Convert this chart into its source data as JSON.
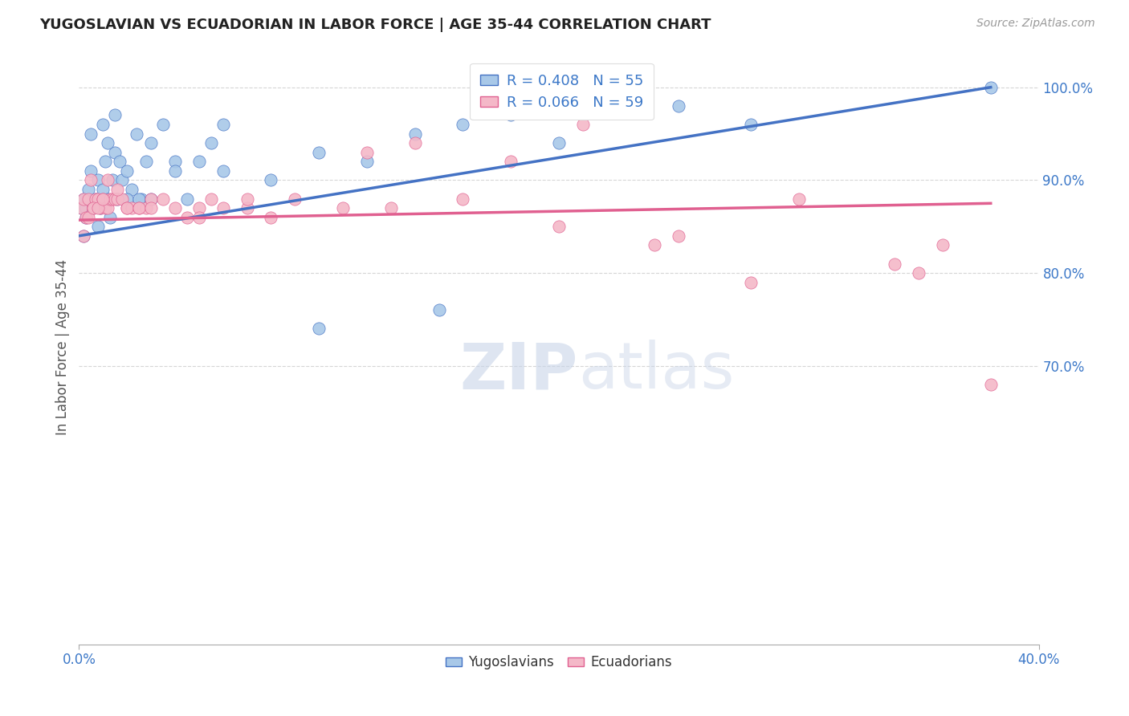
{
  "title": "YUGOSLAVIAN VS ECUADORIAN IN LABOR FORCE | AGE 35-44 CORRELATION CHART",
  "source": "Source: ZipAtlas.com",
  "ylabel": "In Labor Force | Age 35-44",
  "xlim": [
    0.0,
    0.4
  ],
  "ylim": [
    0.4,
    1.04
  ],
  "ytick_labels": [
    "100.0%",
    "90.0%",
    "80.0%",
    "70.0%"
  ],
  "ytick_values": [
    1.0,
    0.9,
    0.8,
    0.7
  ],
  "xtick_labels": [
    "0.0%",
    "40.0%"
  ],
  "xtick_values": [
    0.0,
    0.4
  ],
  "legend_r_blue": "R = 0.408",
  "legend_n_blue": "N = 55",
  "legend_r_pink": "R = 0.066",
  "legend_n_pink": "N = 59",
  "legend_label_blue": "Yugoslavians",
  "legend_label_pink": "Ecuadorians",
  "blue_color": "#a8c8e8",
  "pink_color": "#f4b8c8",
  "blue_line_color": "#4472c4",
  "pink_line_color": "#e06090",
  "accent_color": "#3c78c8",
  "watermark_color": "#c8d4e8",
  "blue_scatter_x": [
    0.001,
    0.002,
    0.003,
    0.004,
    0.005,
    0.006,
    0.007,
    0.008,
    0.009,
    0.01,
    0.011,
    0.012,
    0.013,
    0.014,
    0.015,
    0.016,
    0.017,
    0.018,
    0.02,
    0.022,
    0.024,
    0.026,
    0.028,
    0.03,
    0.035,
    0.04,
    0.045,
    0.05,
    0.055,
    0.06,
    0.002,
    0.003,
    0.005,
    0.008,
    0.01,
    0.012,
    0.015,
    0.02,
    0.025,
    0.03,
    0.04,
    0.06,
    0.08,
    0.1,
    0.12,
    0.14,
    0.16,
    0.18,
    0.2,
    0.25,
    0.1,
    0.15,
    0.22,
    0.28,
    0.38
  ],
  "blue_scatter_y": [
    0.87,
    0.88,
    0.86,
    0.89,
    0.91,
    0.87,
    0.88,
    0.9,
    0.87,
    0.89,
    0.92,
    0.88,
    0.86,
    0.9,
    0.93,
    0.88,
    0.92,
    0.9,
    0.91,
    0.89,
    0.95,
    0.88,
    0.92,
    0.94,
    0.96,
    0.92,
    0.88,
    0.92,
    0.94,
    0.91,
    0.84,
    0.87,
    0.95,
    0.85,
    0.96,
    0.94,
    0.97,
    0.88,
    0.88,
    0.88,
    0.91,
    0.96,
    0.9,
    0.93,
    0.92,
    0.95,
    0.96,
    0.97,
    0.94,
    0.98,
    0.74,
    0.76,
    0.98,
    0.96,
    1.0
  ],
  "pink_scatter_x": [
    0.001,
    0.002,
    0.003,
    0.004,
    0.005,
    0.006,
    0.007,
    0.008,
    0.009,
    0.01,
    0.011,
    0.012,
    0.013,
    0.014,
    0.015,
    0.016,
    0.018,
    0.02,
    0.022,
    0.025,
    0.028,
    0.03,
    0.035,
    0.04,
    0.045,
    0.05,
    0.055,
    0.06,
    0.07,
    0.08,
    0.002,
    0.004,
    0.006,
    0.008,
    0.01,
    0.012,
    0.016,
    0.02,
    0.025,
    0.03,
    0.05,
    0.07,
    0.09,
    0.11,
    0.13,
    0.16,
    0.2,
    0.24,
    0.28,
    0.12,
    0.14,
    0.18,
    0.21,
    0.25,
    0.3,
    0.34,
    0.36,
    0.38,
    0.35
  ],
  "pink_scatter_y": [
    0.87,
    0.88,
    0.86,
    0.88,
    0.9,
    0.87,
    0.88,
    0.88,
    0.87,
    0.88,
    0.87,
    0.87,
    0.88,
    0.88,
    0.88,
    0.88,
    0.88,
    0.87,
    0.87,
    0.87,
    0.87,
    0.88,
    0.88,
    0.87,
    0.86,
    0.87,
    0.88,
    0.87,
    0.87,
    0.86,
    0.84,
    0.86,
    0.87,
    0.87,
    0.88,
    0.9,
    0.89,
    0.87,
    0.87,
    0.87,
    0.86,
    0.88,
    0.88,
    0.87,
    0.87,
    0.88,
    0.85,
    0.83,
    0.79,
    0.93,
    0.94,
    0.92,
    0.96,
    0.84,
    0.88,
    0.81,
    0.83,
    0.68,
    0.8
  ]
}
